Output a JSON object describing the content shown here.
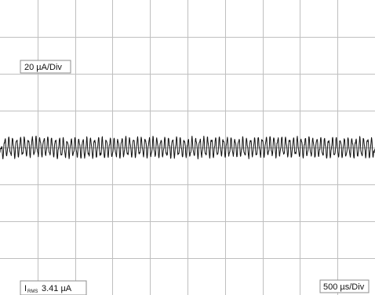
{
  "chart_data": {
    "type": "line",
    "title": "",
    "xlabel": "",
    "ylabel": "",
    "grid": true,
    "divisions": {
      "x": 10,
      "y": 8
    },
    "scale_labels": {
      "vertical": "20 µA/Div",
      "horizontal": "500 µs/Div"
    },
    "measurement": {
      "symbol": "I",
      "subscript": "RMS",
      "value": "3.41 µA"
    },
    "x_units": "ms",
    "xlim": [
      0,
      5
    ],
    "y_units": "µA",
    "ylim": [
      -80,
      80
    ],
    "series": [
      {
        "description": "current noise waveform, approx. 3.41 µA RMS, ripple period ≈ 0.052 ms",
        "x": [
          0.0,
          0.05,
          0.1,
          0.15,
          0.2,
          0.25,
          0.3,
          0.35,
          0.4,
          0.45,
          0.5,
          0.55,
          0.6,
          0.65,
          0.7,
          0.75,
          0.8,
          0.85,
          0.9,
          0.95,
          1.0,
          1.05,
          1.1,
          1.15,
          1.2,
          1.25,
          1.3,
          1.35,
          1.4,
          1.45,
          1.5,
          1.55,
          1.6,
          1.65,
          1.7,
          1.75,
          1.8,
          1.85,
          1.9,
          1.95,
          2.0,
          2.05,
          2.1,
          2.15,
          2.2,
          2.25,
          2.3,
          2.35,
          2.4,
          2.45,
          2.5,
          2.55,
          2.6,
          2.65,
          2.7,
          2.75,
          2.8,
          2.85,
          2.9,
          2.95,
          3.0,
          3.05,
          3.1,
          3.15,
          3.2,
          3.25,
          3.3,
          3.35,
          3.4,
          3.45,
          3.5,
          3.55,
          3.6,
          3.65,
          3.7,
          3.75,
          3.8,
          3.85,
          3.9,
          3.95,
          4.0,
          4.05,
          4.1,
          4.15,
          4.2,
          4.25,
          4.3,
          4.35,
          4.4,
          4.45,
          4.5,
          4.55,
          4.6,
          4.65,
          4.7,
          4.75,
          4.8,
          4.85,
          4.9,
          4.95,
          5.0
        ],
        "y": [
          -1.5,
          3.8,
          4.5,
          4.1,
          3.9,
          4.2,
          5.0,
          4.4,
          4.8,
          5.2,
          4.6,
          4.9,
          5.3,
          4.7,
          4.0,
          3.6,
          3.4,
          3.5,
          3.2,
          3.3,
          3.6,
          3.1,
          3.4,
          3.2,
          3.5,
          3.8,
          3.3,
          3.6,
          3.4,
          4.1,
          3.7,
          3.5,
          3.9,
          4.3,
          4.0,
          4.4,
          4.6,
          5.4,
          4.5,
          4.2,
          4.0,
          3.8,
          4.1,
          3.7,
          3.6,
          3.9,
          4.2,
          4.0,
          4.4,
          4.1,
          3.8,
          4.0,
          3.7,
          3.9,
          4.2,
          4.5,
          4.8,
          4.3,
          4.6,
          4.9,
          4.4,
          4.7,
          4.1,
          4.5,
          4.3,
          4.0,
          3.8,
          3.9,
          4.2,
          4.6,
          5.1,
          4.8,
          5.2,
          5.4,
          4.9,
          5.1,
          4.6,
          4.4,
          4.7,
          4.5,
          4.2,
          4.3,
          4.6,
          4.1,
          4.4,
          4.0,
          3.6,
          3.4,
          3.8,
          3.5,
          3.7,
          3.3,
          3.6,
          3.9,
          4.2,
          3.8,
          4.1,
          3.7,
          4.3,
          3.4,
          -1.2
        ]
      }
    ]
  },
  "colors": {
    "background": "#ffffff",
    "grid": "#bfbfbf",
    "trace": "#111111",
    "label_box_border": "#8c8c8c"
  }
}
